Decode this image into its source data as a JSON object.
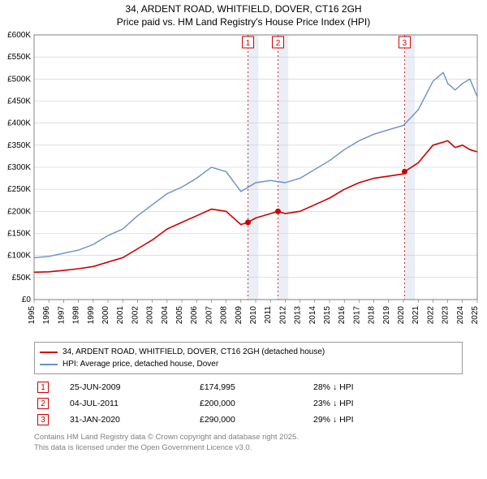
{
  "title_line1": "34, ARDENT ROAD, WHITFIELD, DOVER, CT16 2GH",
  "title_line2": "Price paid vs. HM Land Registry's House Price Index (HPI)",
  "chart": {
    "type": "line",
    "background_color": "#ffffff",
    "grid_color": "#cccccc",
    "axis_color": "#666666",
    "tick_fontsize": 10,
    "x": {
      "min": 1995,
      "max": 2025,
      "ticks": [
        1995,
        1996,
        1997,
        1998,
        1999,
        2000,
        2001,
        2002,
        2003,
        2004,
        2005,
        2006,
        2007,
        2008,
        2009,
        2010,
        2011,
        2012,
        2013,
        2014,
        2015,
        2016,
        2017,
        2018,
        2019,
        2020,
        2021,
        2022,
        2023,
        2024,
        2025
      ]
    },
    "y": {
      "min": 0,
      "max": 600000,
      "tick_step": 50000,
      "labels": [
        "£0",
        "£50K",
        "£100K",
        "£150K",
        "£200K",
        "£250K",
        "£300K",
        "£350K",
        "£400K",
        "£450K",
        "£500K",
        "£550K",
        "£600K"
      ]
    },
    "series": [
      {
        "name": "property_price",
        "color": "#cc0000",
        "line_width": 1.6,
        "data": [
          [
            1995,
            62000
          ],
          [
            1996,
            63000
          ],
          [
            1997,
            66000
          ],
          [
            1998,
            70000
          ],
          [
            1999,
            75000
          ],
          [
            2000,
            85000
          ],
          [
            2001,
            95000
          ],
          [
            2002,
            115000
          ],
          [
            2003,
            135000
          ],
          [
            2004,
            160000
          ],
          [
            2005,
            175000
          ],
          [
            2006,
            190000
          ],
          [
            2007,
            205000
          ],
          [
            2008,
            200000
          ],
          [
            2009,
            170000
          ],
          [
            2009.48,
            174995
          ],
          [
            2010,
            185000
          ],
          [
            2011,
            195000
          ],
          [
            2011.51,
            200000
          ],
          [
            2012,
            195000
          ],
          [
            2013,
            200000
          ],
          [
            2014,
            215000
          ],
          [
            2015,
            230000
          ],
          [
            2016,
            250000
          ],
          [
            2017,
            265000
          ],
          [
            2018,
            275000
          ],
          [
            2019,
            280000
          ],
          [
            2020,
            285000
          ],
          [
            2020.08,
            290000
          ],
          [
            2021,
            310000
          ],
          [
            2022,
            350000
          ],
          [
            2023,
            360000
          ],
          [
            2023.5,
            345000
          ],
          [
            2024,
            350000
          ],
          [
            2024.5,
            340000
          ],
          [
            2025,
            335000
          ]
        ],
        "markers": [
          {
            "x": 2009.48,
            "y": 174995
          },
          {
            "x": 2011.51,
            "y": 200000
          },
          {
            "x": 2020.08,
            "y": 290000
          }
        ]
      },
      {
        "name": "hpi",
        "color": "#6a8fc7",
        "line_width": 1.4,
        "data": [
          [
            1995,
            95000
          ],
          [
            1996,
            98000
          ],
          [
            1997,
            105000
          ],
          [
            1998,
            112000
          ],
          [
            1999,
            125000
          ],
          [
            2000,
            145000
          ],
          [
            2001,
            160000
          ],
          [
            2002,
            190000
          ],
          [
            2003,
            215000
          ],
          [
            2004,
            240000
          ],
          [
            2005,
            255000
          ],
          [
            2006,
            275000
          ],
          [
            2007,
            300000
          ],
          [
            2008,
            290000
          ],
          [
            2009,
            245000
          ],
          [
            2010,
            265000
          ],
          [
            2011,
            270000
          ],
          [
            2012,
            265000
          ],
          [
            2013,
            275000
          ],
          [
            2014,
            295000
          ],
          [
            2015,
            315000
          ],
          [
            2016,
            340000
          ],
          [
            2017,
            360000
          ],
          [
            2018,
            375000
          ],
          [
            2019,
            385000
          ],
          [
            2020,
            395000
          ],
          [
            2021,
            430000
          ],
          [
            2022,
            495000
          ],
          [
            2022.7,
            515000
          ],
          [
            2023,
            490000
          ],
          [
            2023.5,
            475000
          ],
          [
            2024,
            490000
          ],
          [
            2024.5,
            500000
          ],
          [
            2025,
            460000
          ]
        ]
      }
    ],
    "event_bands": [
      {
        "x": 2009.48,
        "width_years": 0.7,
        "fill": "#eaeef5"
      },
      {
        "x": 2011.51,
        "width_years": 0.7,
        "fill": "#eaeef5"
      },
      {
        "x": 2020.08,
        "width_years": 0.7,
        "fill": "#eaeef5"
      }
    ],
    "event_lines": [
      {
        "x": 2009.48,
        "color": "#cc0000",
        "label": "1"
      },
      {
        "x": 2011.51,
        "color": "#cc0000",
        "label": "2"
      },
      {
        "x": 2020.08,
        "color": "#cc0000",
        "label": "3"
      }
    ],
    "marker_color": "#cc0000",
    "marker_radius": 3.5
  },
  "legend": {
    "items": [
      {
        "color": "#cc0000",
        "label": "34, ARDENT ROAD, WHITFIELD, DOVER, CT16 2GH (detached house)"
      },
      {
        "color": "#6a8fc7",
        "label": "HPI: Average price, detached house, Dover"
      }
    ]
  },
  "events_table": {
    "rows": [
      {
        "num": "1",
        "date": "25-JUN-2009",
        "price": "£174,995",
        "delta": "28% ↓ HPI"
      },
      {
        "num": "2",
        "date": "04-JUL-2011",
        "price": "£200,000",
        "delta": "23% ↓ HPI"
      },
      {
        "num": "3",
        "date": "31-JAN-2020",
        "price": "£290,000",
        "delta": "29% ↓ HPI"
      }
    ],
    "num_border_color": "#cc0000"
  },
  "license_line1": "Contains HM Land Registry data © Crown copyright and database right 2025.",
  "license_line2": "This data is licensed under the Open Government Licence v3.0."
}
